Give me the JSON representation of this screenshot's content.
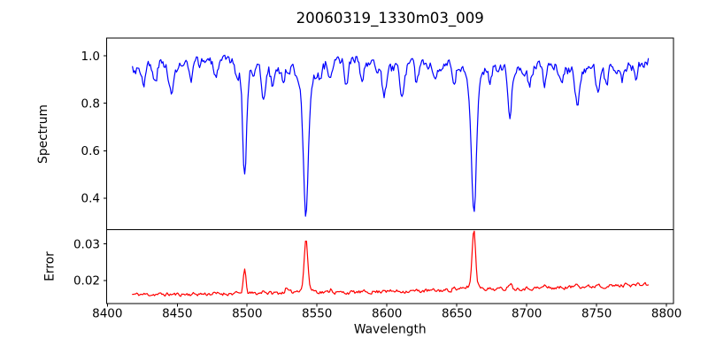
{
  "window": {
    "background": "#ffffff"
  },
  "chart_data": {
    "type": "line",
    "title": "20060319_1330m03_009",
    "xlabel": "Wavelength",
    "xlim": [
      8399.5,
      8805
    ],
    "xticks": {
      "values": [
        8400,
        8450,
        8500,
        8550,
        8600,
        8650,
        8700,
        8750,
        8800
      ],
      "labels": [
        "8400",
        "8450",
        "8500",
        "8550",
        "8600",
        "8650",
        "8700",
        "8750",
        "8800"
      ]
    },
    "frame_color": "#000000",
    "background": "#ffffff",
    "grid": false,
    "legend": false,
    "key_lines": [
      {
        "wavelength": 8498,
        "spectrum_min": 0.5,
        "error_peak": 0.023
      },
      {
        "wavelength": 8542,
        "spectrum_min": 0.32,
        "error_peak": 0.031
      },
      {
        "wavelength": 8662,
        "spectrum_min": 0.32,
        "error_peak": 0.033
      }
    ],
    "panels": [
      {
        "name": "spectrum",
        "ylabel": "Spectrum",
        "line_color": "#0000ff",
        "ylim": [
          0.267,
          1.075
        ],
        "yticks": {
          "values": [
            0.4,
            0.6,
            0.8,
            1.0
          ],
          "labels": [
            "0.4",
            "0.6",
            "0.8",
            "1.0"
          ]
        },
        "x_start": 8418,
        "x_end": 8787,
        "x_step": 0.75,
        "clip": [
          0.28,
          1.05
        ],
        "noise": {
          "seed": 3,
          "rho": 0.45,
          "amplitude": 0.022
        },
        "continuum": [
          [
            8418,
            0.945
          ],
          [
            8428,
            0.955
          ],
          [
            8438,
            0.965
          ],
          [
            8450,
            0.955
          ],
          [
            8462,
            0.965
          ],
          [
            8472,
            0.985
          ],
          [
            8485,
            0.965
          ],
          [
            8495,
            0.975
          ],
          [
            8505,
            0.955
          ],
          [
            8520,
            0.945
          ],
          [
            8535,
            0.96
          ],
          [
            8550,
            0.96
          ],
          [
            8565,
            0.97
          ],
          [
            8578,
            0.985
          ],
          [
            8590,
            0.955
          ],
          [
            8605,
            0.945
          ],
          [
            8618,
            0.96
          ],
          [
            8632,
            0.97
          ],
          [
            8645,
            0.955
          ],
          [
            8658,
            0.965
          ],
          [
            8672,
            0.96
          ],
          [
            8685,
            0.96
          ],
          [
            8700,
            0.95
          ],
          [
            8715,
            0.96
          ],
          [
            8730,
            0.945
          ],
          [
            8745,
            0.95
          ],
          [
            8760,
            0.945
          ],
          [
            8775,
            0.96
          ],
          [
            8787,
            0.97
          ]
        ],
        "features": [
          {
            "center": 8426.0,
            "amplitude": -0.06,
            "sigma": 1.2
          },
          {
            "center": 8434.0,
            "amplitude": -0.08,
            "sigma": 1.3
          },
          {
            "center": 8446.0,
            "amplitude": -0.13,
            "sigma": 1.5
          },
          {
            "center": 8460.0,
            "amplitude": -0.08,
            "sigma": 1.2
          },
          {
            "center": 8477.0,
            "amplitude": -0.08,
            "sigma": 1.2
          },
          {
            "center": 8493.0,
            "amplitude": -0.05,
            "sigma": 1.1
          },
          {
            "center": 8498.2,
            "amplitude": -0.43,
            "sigma": 1.3
          },
          {
            "center": 8498.2,
            "amplitude": -0.05,
            "sigma": 4.0
          },
          {
            "center": 8512.0,
            "amplitude": -0.13,
            "sigma": 1.4
          },
          {
            "center": 8518.0,
            "amplitude": -0.07,
            "sigma": 1.2
          },
          {
            "center": 8526.0,
            "amplitude": -0.06,
            "sigma": 1.2
          },
          {
            "center": 8542.1,
            "amplitude": -0.56,
            "sigma": 1.7
          },
          {
            "center": 8542.1,
            "amplitude": -0.08,
            "sigma": 5.0
          },
          {
            "center": 8552.0,
            "amplitude": -0.05,
            "sigma": 1.2
          },
          {
            "center": 8560.0,
            "amplitude": -0.06,
            "sigma": 1.2
          },
          {
            "center": 8571.0,
            "amplitude": -0.09,
            "sigma": 1.3
          },
          {
            "center": 8582.0,
            "amplitude": -0.09,
            "sigma": 1.3
          },
          {
            "center": 8598.0,
            "amplitude": -0.12,
            "sigma": 1.5
          },
          {
            "center": 8611.0,
            "amplitude": -0.12,
            "sigma": 1.4
          },
          {
            "center": 8621.0,
            "amplitude": -0.07,
            "sigma": 1.2
          },
          {
            "center": 8634.0,
            "amplitude": -0.06,
            "sigma": 1.2
          },
          {
            "center": 8648.0,
            "amplitude": -0.1,
            "sigma": 1.3
          },
          {
            "center": 8662.2,
            "amplitude": -0.56,
            "sigma": 1.7
          },
          {
            "center": 8662.2,
            "amplitude": -0.08,
            "sigma": 5.0
          },
          {
            "center": 8674.0,
            "amplitude": -0.06,
            "sigma": 1.2
          },
          {
            "center": 8688.0,
            "amplitude": -0.19,
            "sigma": 1.5
          },
          {
            "center": 8702.0,
            "amplitude": -0.07,
            "sigma": 1.2
          },
          {
            "center": 8713.0,
            "amplitude": -0.08,
            "sigma": 1.3
          },
          {
            "center": 8725.0,
            "amplitude": -0.07,
            "sigma": 1.2
          },
          {
            "center": 8736.0,
            "amplitude": -0.16,
            "sigma": 1.5
          },
          {
            "center": 8751.0,
            "amplitude": -0.1,
            "sigma": 1.3
          },
          {
            "center": 8757.0,
            "amplitude": -0.07,
            "sigma": 1.2
          },
          {
            "center": 8768.0,
            "amplitude": -0.06,
            "sigma": 1.2
          },
          {
            "center": 8778.0,
            "amplitude": -0.07,
            "sigma": 1.2
          }
        ]
      },
      {
        "name": "error",
        "ylabel": "Error",
        "line_color": "#ff0000",
        "ylim": [
          0.0137,
          0.0339
        ],
        "yticks": {
          "values": [
            0.02,
            0.03
          ],
          "labels": [
            "0.02",
            "0.03"
          ]
        },
        "x_start": 8418,
        "x_end": 8787,
        "x_step": 0.75,
        "clip": [
          0.014,
          0.0335
        ],
        "noise": {
          "seed": 11,
          "rho": 0.4,
          "amplitude": 0.00045
        },
        "continuum": [
          [
            8418,
            0.0162
          ],
          [
            8450,
            0.0162
          ],
          [
            8480,
            0.0164
          ],
          [
            8510,
            0.0165
          ],
          [
            8540,
            0.0168
          ],
          [
            8570,
            0.0167
          ],
          [
            8600,
            0.017
          ],
          [
            8630,
            0.0172
          ],
          [
            8660,
            0.0175
          ],
          [
            8690,
            0.0178
          ],
          [
            8720,
            0.018
          ],
          [
            8750,
            0.0184
          ],
          [
            8770,
            0.0186
          ],
          [
            8787,
            0.019
          ]
        ],
        "features": [
          {
            "center": 8498.2,
            "amplitude": 0.0062,
            "sigma": 1.0
          },
          {
            "center": 8512.0,
            "amplitude": 0.0008,
            "sigma": 1.0
          },
          {
            "center": 8528.0,
            "amplitude": 0.0011,
            "sigma": 1.0
          },
          {
            "center": 8542.1,
            "amplitude": 0.0135,
            "sigma": 1.2
          },
          {
            "center": 8542.1,
            "amplitude": 0.0012,
            "sigma": 4.5
          },
          {
            "center": 8560.0,
            "amplitude": 0.001,
            "sigma": 1.0
          },
          {
            "center": 8598.0,
            "amplitude": 0.0007,
            "sigma": 1.0
          },
          {
            "center": 8648.0,
            "amplitude": 0.0008,
            "sigma": 1.0
          },
          {
            "center": 8662.2,
            "amplitude": 0.0152,
            "sigma": 1.2
          },
          {
            "center": 8662.2,
            "amplitude": 0.0013,
            "sigma": 4.5
          },
          {
            "center": 8688.0,
            "amplitude": 0.0016,
            "sigma": 1.2
          },
          {
            "center": 8713.0,
            "amplitude": 0.0007,
            "sigma": 1.0
          },
          {
            "center": 8736.0,
            "amplitude": 0.0012,
            "sigma": 1.2
          },
          {
            "center": 8751.0,
            "amplitude": 0.0008,
            "sigma": 1.0
          },
          {
            "center": 8772.0,
            "amplitude": 0.0008,
            "sigma": 1.0
          }
        ]
      }
    ]
  }
}
